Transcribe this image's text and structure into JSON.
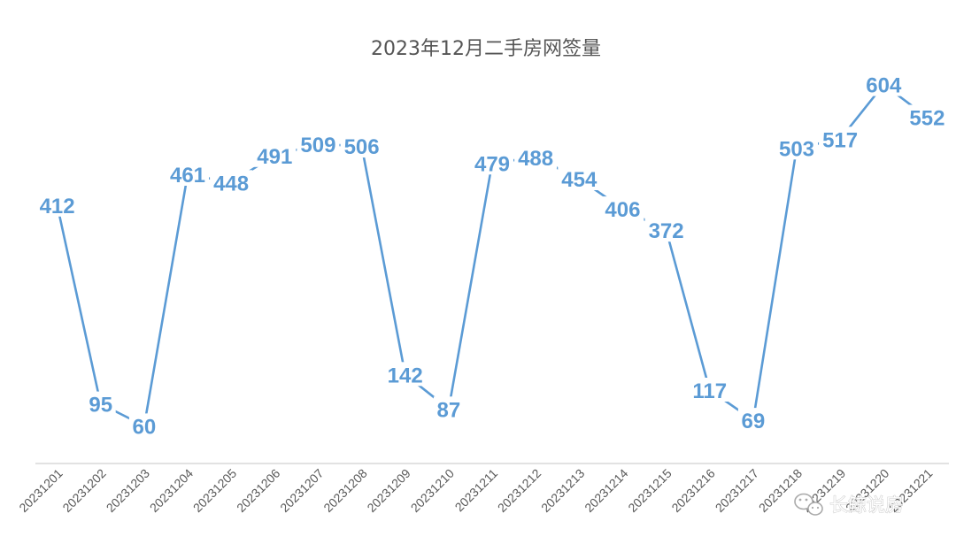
{
  "chart_data": {
    "type": "line",
    "title": "2023年12月二手房网签量",
    "xlabel": "",
    "ylabel": "",
    "categories": [
      "20231201",
      "20231202",
      "20231203",
      "20231204",
      "20231205",
      "20231206",
      "20231207",
      "20231208",
      "20231209",
      "20231210",
      "20231211",
      "20231212",
      "20231213",
      "20231214",
      "20231215",
      "20231216",
      "20231217",
      "20231218",
      "20231219",
      "20231220",
      "20231221"
    ],
    "series": [
      {
        "values": [
          412,
          95,
          60,
          461,
          448,
          491,
          509,
          506,
          142,
          87,
          479,
          488,
          454,
          406,
          372,
          117,
          69,
          503,
          517,
          604,
          552
        ]
      }
    ],
    "ylim": [
      0,
      650
    ],
    "grid": false,
    "legend": "none",
    "data_labels": true,
    "colors": {
      "line": "#5b9bd5",
      "axis": "#d9d9d9",
      "title": "#555555",
      "tick": "#595959"
    }
  },
  "watermark": {
    "text": "长鲸说房",
    "icon": "wechat-icon"
  }
}
